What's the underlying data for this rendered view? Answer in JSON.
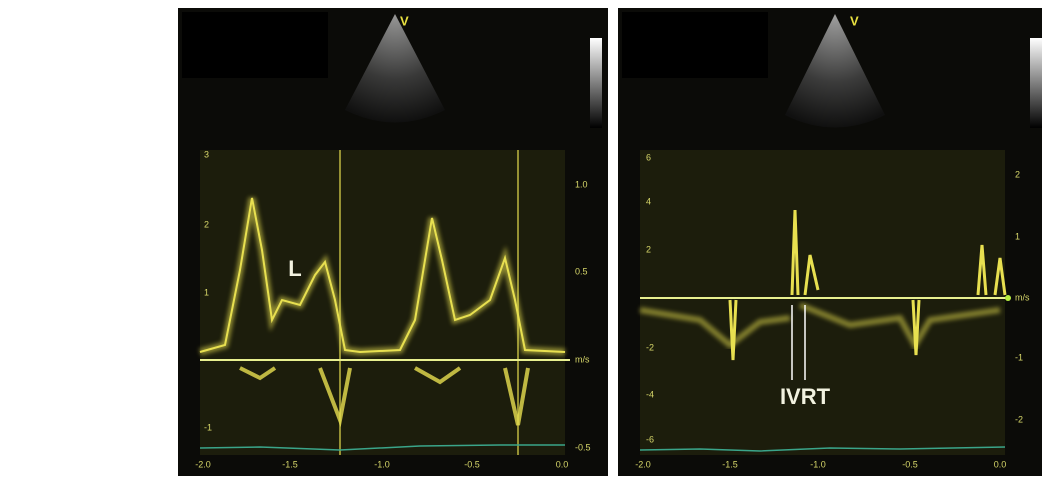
{
  "panels": [
    {
      "marker": "V",
      "label": "L",
      "left_ticks": [
        "3",
        "2",
        "1",
        "-1"
      ],
      "right_ticks": [
        "1.0",
        "0.5",
        "m/s",
        "-0.5"
      ],
      "bottom_ticks": [
        "-2.0",
        "-1.5",
        "-1.0",
        "-0.5",
        "0.0"
      ]
    },
    {
      "marker": "V",
      "label": "IVRT",
      "left_ticks": [
        "6",
        "4",
        "2",
        "-2",
        "-4",
        "-6"
      ],
      "right_ticks": [
        "2",
        "1",
        "m/s",
        "-1",
        "-2"
      ],
      "bottom_ticks": [
        "-2.0",
        "-1.5",
        "-1.0",
        "-0.5",
        "0.0"
      ]
    }
  ]
}
